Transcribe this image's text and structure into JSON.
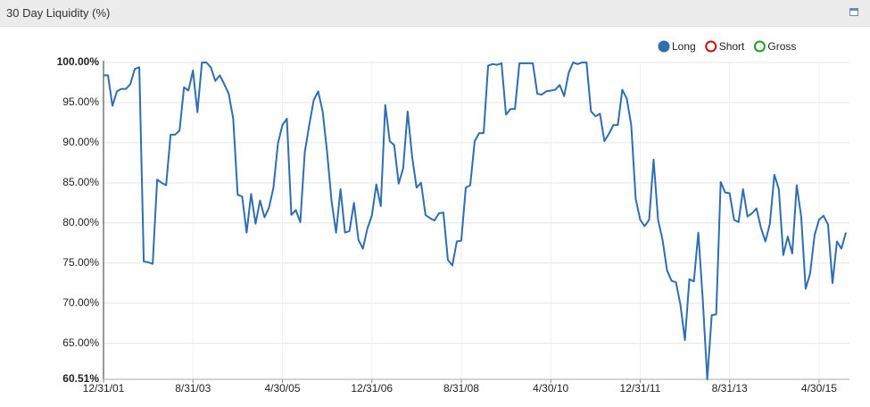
{
  "header": {
    "title": "30 Day Liquidity (%)"
  },
  "chart_data": {
    "type": "line",
    "x": [
      "12/31/01",
      "1/31/02",
      "2/28/02",
      "3/31/02",
      "4/30/02",
      "5/31/02",
      "6/30/02",
      "7/31/02",
      "8/31/02",
      "9/30/02",
      "10/31/02",
      "11/30/02",
      "12/31/02",
      "1/31/03",
      "2/28/03",
      "3/31/03",
      "4/30/03",
      "5/31/03",
      "6/30/03",
      "7/31/03",
      "8/31/03",
      "9/30/03",
      "10/31/03",
      "11/30/03",
      "12/31/03",
      "1/31/04",
      "2/29/04",
      "3/31/04",
      "4/30/04",
      "5/31/04",
      "6/30/04",
      "7/31/04",
      "8/31/04",
      "9/30/04",
      "10/31/04",
      "11/30/04",
      "12/31/04",
      "1/31/05",
      "2/28/05",
      "3/31/05",
      "4/30/05",
      "5/31/05",
      "6/30/05",
      "7/31/05",
      "8/31/05",
      "9/30/05",
      "10/31/05",
      "11/30/05",
      "12/31/05",
      "1/31/06",
      "2/28/06",
      "3/31/06",
      "4/30/06",
      "5/31/06",
      "6/30/06",
      "7/31/06",
      "8/31/06",
      "9/30/06",
      "10/31/06",
      "11/30/06",
      "12/31/06",
      "1/31/07",
      "2/28/07",
      "3/31/07",
      "4/30/07",
      "5/31/07",
      "6/30/07",
      "7/31/07",
      "8/31/07",
      "9/30/07",
      "10/31/07",
      "11/30/07",
      "12/31/07",
      "1/31/08",
      "2/29/08",
      "3/31/08",
      "4/30/08",
      "5/31/08",
      "6/30/08",
      "7/31/08",
      "8/31/08",
      "9/30/08",
      "10/31/08",
      "11/30/08",
      "12/31/08",
      "1/31/09",
      "2/28/09",
      "3/31/09",
      "4/30/09",
      "5/31/09",
      "6/30/09",
      "7/31/09",
      "8/31/09",
      "9/30/09",
      "10/31/09",
      "11/30/09",
      "12/31/09",
      "1/31/10",
      "2/28/10",
      "3/31/10",
      "4/30/10",
      "5/31/10",
      "6/30/10",
      "7/31/10",
      "8/31/10",
      "9/30/10",
      "10/31/10",
      "11/30/10",
      "12/31/10",
      "1/31/11",
      "2/28/11",
      "3/31/11",
      "4/30/11",
      "5/31/11",
      "6/30/11",
      "7/31/11",
      "8/31/11",
      "9/30/11",
      "10/31/11",
      "11/30/11",
      "12/31/11",
      "1/31/12",
      "2/29/12",
      "3/31/12",
      "4/30/12",
      "5/31/12",
      "6/30/12",
      "7/31/12",
      "8/31/12",
      "9/30/12",
      "10/31/12",
      "11/30/12",
      "12/31/12",
      "1/31/13",
      "2/28/13",
      "3/31/13",
      "4/30/13",
      "5/31/13",
      "6/30/13",
      "7/31/13",
      "8/31/13",
      "9/30/13",
      "10/31/13",
      "11/30/13",
      "12/31/13",
      "1/31/14",
      "2/28/14",
      "3/31/14",
      "4/30/14",
      "5/31/14",
      "6/30/14",
      "7/31/14",
      "8/31/14",
      "9/30/14",
      "10/31/14",
      "11/30/14",
      "12/31/14",
      "1/31/15",
      "2/28/15",
      "3/31/15",
      "4/30/15",
      "5/31/15",
      "6/30/15",
      "7/31/15",
      "8/31/15",
      "9/30/15",
      "10/31/15"
    ],
    "series": [
      {
        "name": "Long",
        "color": "#2f6eb0",
        "values": [
          98.4,
          98.4,
          94.6,
          96.4,
          96.7,
          96.7,
          97.3,
          99.2,
          99.4,
          75.2,
          75.1,
          74.9,
          85.4,
          85.0,
          84.7,
          91.0,
          91.0,
          91.5,
          96.9,
          96.5,
          99.0,
          93.8,
          100,
          100,
          99.4,
          97.7,
          98.4,
          97.3,
          96.1,
          93.0,
          83.5,
          83.3,
          78.8,
          83.6,
          79.9,
          82.8,
          80.7,
          81.9,
          84.4,
          89.9,
          92.2,
          93.0,
          81.0,
          81.6,
          80.1,
          88.8,
          92.2,
          95.3,
          96.4,
          93.9,
          88.8,
          82.7,
          78.8,
          84.2,
          78.8,
          79.0,
          82.5,
          77.9,
          76.8,
          79.3,
          80.9,
          84.8,
          82.1,
          94.7,
          90.2,
          89.7,
          84.9,
          86.8,
          93.9,
          88.3,
          84.4,
          85.0,
          81.0,
          80.6,
          80.3,
          81.2,
          81.3,
          75.4,
          74.7,
          77.7,
          77.8,
          84.4,
          84.7,
          90.2,
          91.2,
          91.2,
          99.6,
          99.8,
          99.7,
          99.9,
          93.5,
          94.2,
          94.2,
          99.9,
          99.9,
          99.9,
          99.9,
          96.1,
          96.0,
          96.4,
          96.5,
          96.6,
          97.2,
          95.8,
          98.7,
          100,
          99.8,
          100,
          100,
          93.9,
          93.3,
          93.6,
          90.2,
          91.1,
          92.2,
          92.2,
          96.6,
          95.5,
          92.2,
          83.0,
          80.4,
          79.6,
          80.4,
          87.9,
          80.4,
          77.9,
          74.1,
          72.8,
          72.6,
          69.8,
          65.4,
          73.0,
          72.7,
          78.8,
          70.4,
          60.51,
          68.5,
          68.6,
          85.1,
          83.8,
          83.7,
          80.4,
          80.1,
          84.2,
          80.8,
          81.2,
          81.8,
          79.4,
          77.7,
          79.9,
          86.0,
          84.2,
          76.0,
          78.3,
          76.2,
          84.7,
          80.8,
          71.8,
          73.7,
          78.5,
          80.4,
          80.9,
          79.8,
          72.5,
          77.7,
          76.8,
          78.8
        ]
      }
    ],
    "hidden_series": [
      {
        "name": "Short",
        "color": "#cc1111"
      },
      {
        "name": "Gross",
        "color": "#22a022"
      }
    ],
    "ylim": [
      60.51,
      100
    ],
    "yticks": [
      {
        "value": 60.51,
        "label": "60.51%"
      },
      {
        "value": 65,
        "label": "65.00%"
      },
      {
        "value": 70,
        "label": "70.00%"
      },
      {
        "value": 75,
        "label": "75.00%"
      },
      {
        "value": 80,
        "label": "80.00%"
      },
      {
        "value": 85,
        "label": "85.00%"
      },
      {
        "value": 90,
        "label": "90.00%"
      },
      {
        "value": 95,
        "label": "95.00%"
      },
      {
        "value": 100,
        "label": "100.00%"
      }
    ],
    "grid": true,
    "legend": "top-right"
  }
}
